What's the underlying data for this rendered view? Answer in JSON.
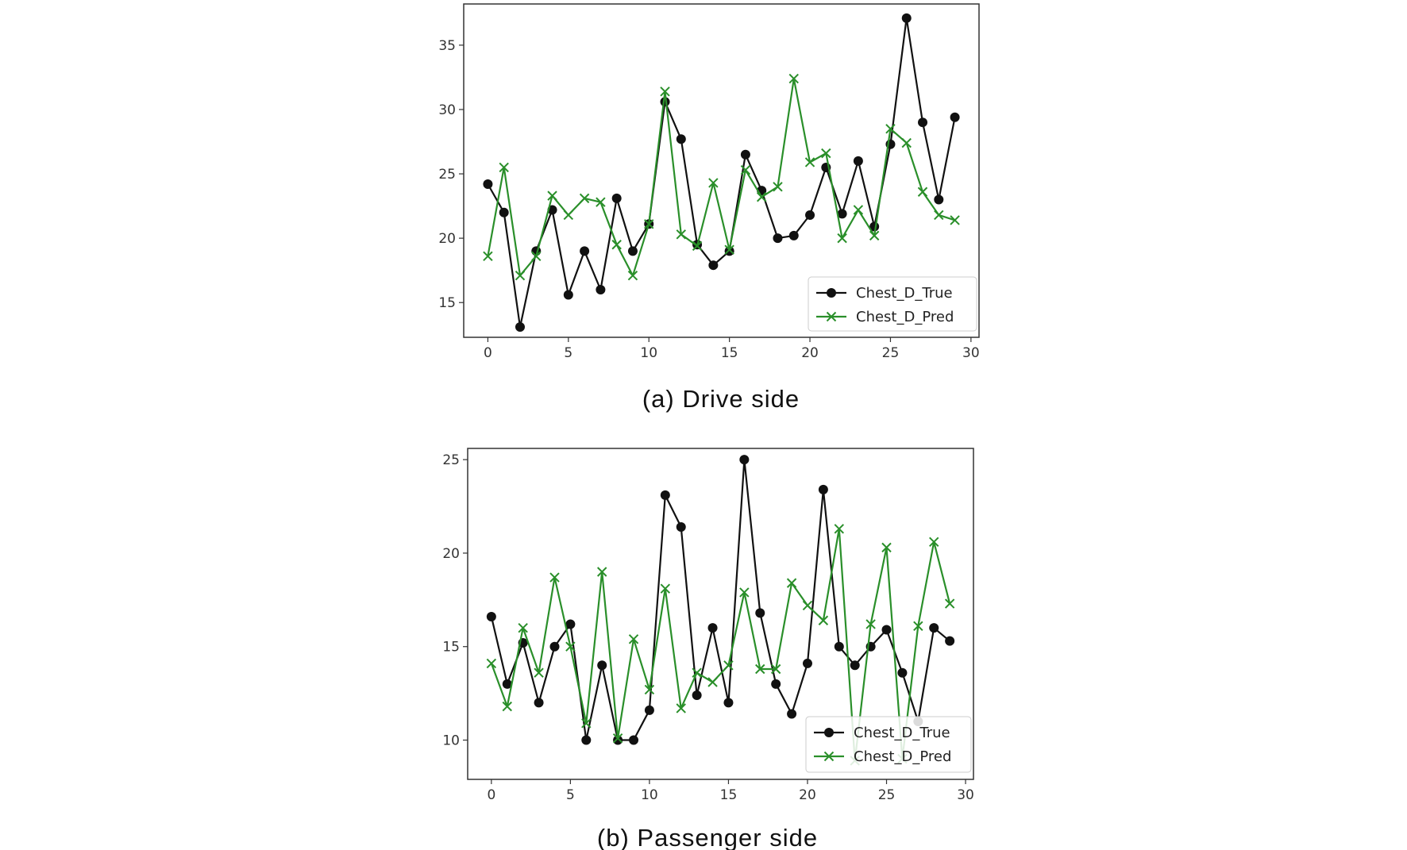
{
  "chart_data": [
    {
      "type": "line",
      "caption": "(a)  Drive  side",
      "x": [
        0,
        1,
        2,
        3,
        4,
        5,
        6,
        7,
        8,
        9,
        10,
        11,
        12,
        13,
        14,
        15,
        16,
        17,
        18,
        19,
        20,
        21,
        22,
        23,
        24,
        25,
        26,
        27,
        28,
        29
      ],
      "xlim": [
        -1.5,
        30.5
      ],
      "ylim": [
        12.3,
        38.2
      ],
      "xticks": [
        0,
        5,
        10,
        15,
        20,
        25,
        30
      ],
      "yticks": [
        15,
        20,
        25,
        30,
        35
      ],
      "grid": false,
      "legend_position": "lower-right",
      "series": [
        {
          "name": "Chest_D_True",
          "color": "#111111",
          "marker": "circle",
          "values": [
            24.2,
            22.0,
            13.1,
            19.0,
            22.2,
            15.6,
            19.0,
            16.0,
            23.1,
            19.0,
            21.1,
            30.6,
            27.7,
            19.5,
            17.9,
            19.0,
            26.5,
            23.7,
            20.0,
            20.2,
            21.8,
            25.5,
            21.9,
            26.0,
            20.9,
            27.3,
            37.1,
            29.0,
            23.0,
            29.4
          ]
        },
        {
          "name": "Chest_D_Pred",
          "color": "#2a8f2a",
          "marker": "x",
          "values": [
            18.6,
            25.5,
            17.1,
            18.6,
            23.3,
            21.8,
            23.1,
            22.8,
            19.5,
            17.1,
            21.1,
            31.4,
            20.3,
            19.4,
            24.3,
            19.1,
            25.3,
            23.2,
            24.0,
            32.4,
            25.9,
            26.6,
            20.0,
            22.2,
            20.2,
            28.5,
            27.4,
            23.6,
            21.8,
            21.4
          ]
        }
      ]
    },
    {
      "type": "line",
      "caption": "(b)  Passenger  side",
      "x": [
        0,
        1,
        2,
        3,
        4,
        5,
        6,
        7,
        8,
        9,
        10,
        11,
        12,
        13,
        14,
        15,
        16,
        17,
        18,
        19,
        20,
        21,
        22,
        23,
        24,
        25,
        26,
        27,
        28,
        29
      ],
      "xlim": [
        -1.5,
        30.5
      ],
      "ylim": [
        7.9,
        25.6
      ],
      "xticks": [
        0,
        5,
        10,
        15,
        20,
        25,
        30
      ],
      "yticks": [
        10,
        15,
        20,
        25
      ],
      "grid": false,
      "legend_position": "lower-right",
      "series": [
        {
          "name": "Chest_D_True",
          "color": "#111111",
          "marker": "circle",
          "values": [
            16.6,
            13.0,
            15.2,
            12.0,
            15.0,
            16.2,
            10.0,
            14.0,
            10.0,
            10.0,
            11.6,
            23.1,
            21.4,
            12.4,
            16.0,
            12.0,
            25.0,
            16.8,
            13.0,
            11.4,
            14.1,
            23.4,
            15.0,
            14.0,
            15.0,
            15.9,
            13.6,
            11.0,
            16.0,
            15.3
          ]
        },
        {
          "name": "Chest_D_Pred",
          "color": "#2a8f2a",
          "marker": "x",
          "values": [
            14.1,
            11.8,
            16.0,
            13.6,
            18.7,
            15.0,
            10.9,
            19.0,
            10.1,
            15.4,
            12.7,
            18.1,
            11.7,
            13.6,
            13.1,
            14.0,
            17.9,
            13.8,
            13.8,
            18.4,
            17.2,
            16.4,
            21.3,
            8.9,
            16.2,
            20.3,
            9.0,
            16.1,
            20.6,
            17.3
          ]
        }
      ]
    }
  ]
}
